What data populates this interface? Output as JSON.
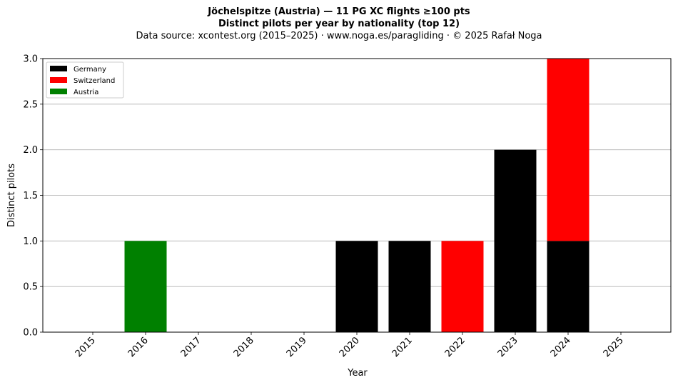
{
  "header": {
    "title": "Jöchelspitze (Austria)  —  11 PG XC flights ≥100 pts",
    "subtitle": "Distinct pilots per year by nationality (top 12)",
    "source": "Data source: xcontest.org (2015–2025)  ·  www.noga.es/paragliding  ·  © 2025 Rafał Noga"
  },
  "chart_data": {
    "type": "bar",
    "stacked": true,
    "categories": [
      "2015",
      "2016",
      "2017",
      "2018",
      "2019",
      "2020",
      "2021",
      "2022",
      "2023",
      "2024",
      "2025"
    ],
    "series": [
      {
        "name": "Germany",
        "color": "#000000",
        "values": [
          0,
          0,
          0,
          0,
          0,
          1,
          1,
          0,
          2,
          1,
          0
        ]
      },
      {
        "name": "Switzerland",
        "color": "#ff0000",
        "values": [
          0,
          0,
          0,
          0,
          0,
          0,
          0,
          1,
          0,
          2,
          0
        ]
      },
      {
        "name": "Austria",
        "color": "#008000",
        "values": [
          0,
          1,
          0,
          0,
          0,
          0,
          0,
          0,
          0,
          0,
          0
        ]
      }
    ],
    "xlabel": "Year",
    "ylabel": "Distinct pilots",
    "ylim": [
      0,
      3
    ],
    "yticks": [
      "0.0",
      "0.5",
      "1.0",
      "1.5",
      "2.0",
      "2.5",
      "3.0"
    ],
    "grid": "y",
    "legend_position": "top-left"
  }
}
